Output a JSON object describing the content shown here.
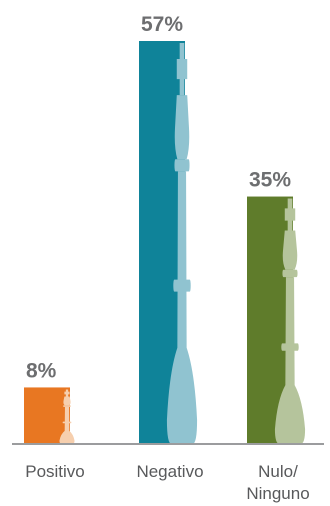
{
  "chart_data": {
    "type": "bar",
    "title": "",
    "xlabel": "",
    "ylabel": "",
    "ylim": [
      0,
      57
    ],
    "grid": false,
    "legend": "none",
    "categories": [
      {
        "label_lines": [
          "Positivo"
        ]
      },
      {
        "label_lines": [
          "Negativo"
        ]
      },
      {
        "label_lines": [
          "Nulo/",
          "Ninguno"
        ]
      }
    ],
    "values": [
      8,
      57,
      35
    ],
    "value_labels": [
      "8%",
      "57%",
      "35%"
    ],
    "bars": [
      {
        "color": "#e87722",
        "piece_color": "#f6cfae",
        "icon": "chess-king-icon"
      },
      {
        "color": "#0f8399",
        "piece_color": "#90c3d0",
        "icon": "chess-king-icon"
      },
      {
        "color": "#5f7c2b",
        "piece_color": "#b5c49c",
        "icon": "chess-king-icon"
      }
    ],
    "baseline_color": "#9b9c9e",
    "label_color": "#6d6e70"
  }
}
